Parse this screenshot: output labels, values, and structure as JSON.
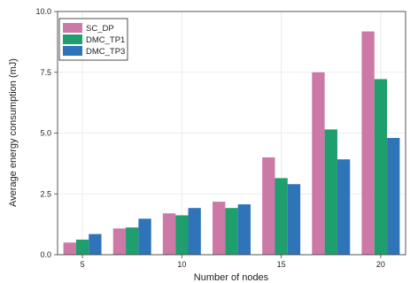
{
  "chart_data": {
    "type": "bar",
    "categories": [
      "5",
      "",
      "10",
      "",
      "15",
      "",
      "20"
    ],
    "x": [
      5,
      7.5,
      10,
      12.5,
      15,
      17.5,
      20
    ],
    "xlabel": "Number of nodes",
    "ylabel": "Average energy consumption (mJ)",
    "ylim": [
      0,
      10
    ],
    "yticks": [
      "0.0",
      "2.5",
      "5.0",
      "7.5",
      "10.0"
    ],
    "grid": true,
    "legend_position": "top-left",
    "series": [
      {
        "name": "SC_DP",
        "color": "#cc79a7",
        "values": [
          0.5,
          1.08,
          1.7,
          2.18,
          4.0,
          7.5,
          9.18
        ]
      },
      {
        "name": "DMC_TP1",
        "color": "#1f9e6e",
        "values": [
          0.62,
          1.12,
          1.62,
          1.92,
          3.15,
          5.15,
          7.22
        ]
      },
      {
        "name": "DMC_TP3",
        "color": "#2f73b8",
        "values": [
          0.85,
          1.48,
          1.92,
          2.07,
          2.9,
          3.92,
          4.8
        ]
      }
    ]
  }
}
